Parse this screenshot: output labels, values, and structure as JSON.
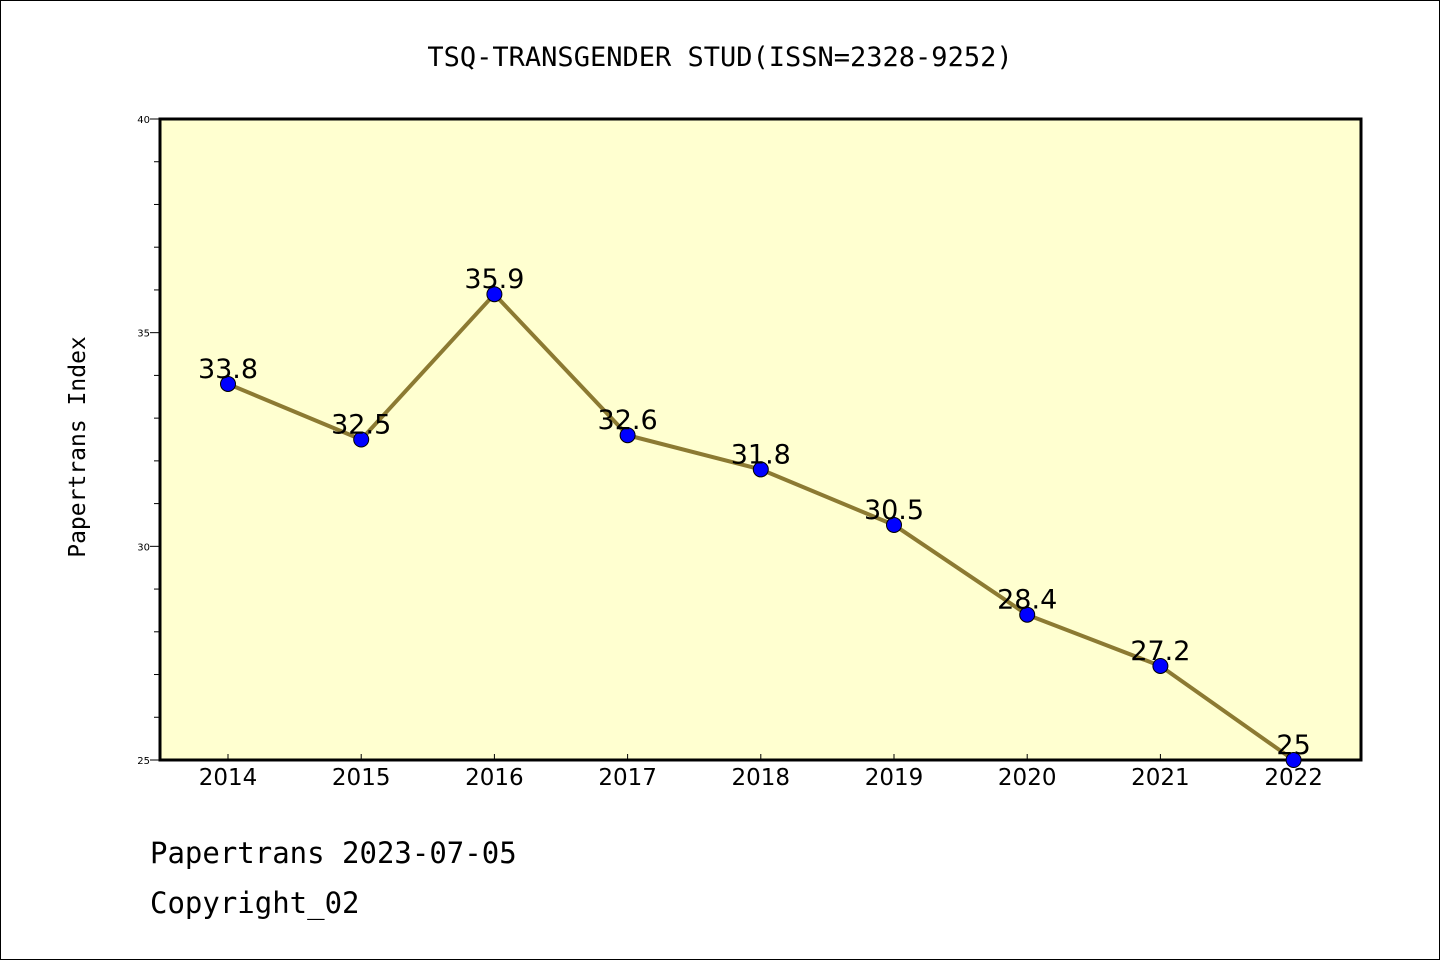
{
  "chart_data": {
    "type": "line",
    "title": "TSQ-TRANSGENDER STUD(ISSN=2328-9252)",
    "xlabel": "",
    "ylabel": "Papertrans Index",
    "categories": [
      "2014",
      "2015",
      "2016",
      "2017",
      "2018",
      "2019",
      "2020",
      "2021",
      "2022"
    ],
    "series": [
      {
        "values": [
          33.8,
          32.5,
          35.9,
          32.6,
          31.8,
          30.5,
          28.4,
          27.2,
          25
        ],
        "labels": [
          "33.8",
          "32.5",
          "35.9",
          "32.6",
          "31.8",
          "30.5",
          "28.4",
          "27.2",
          "25"
        ]
      }
    ],
    "ylim": [
      25,
      40
    ],
    "yticks": [
      "25",
      "30",
      "35",
      "40"
    ],
    "grid": false,
    "legend": "none",
    "colors": {
      "plot_background": "#ffffd0",
      "line": "#8c7a32",
      "marker": "#0000ff",
      "axis": "#000000"
    }
  },
  "footer": {
    "date_line": "Papertrans 2023-07-05",
    "copyright_line": "Copyright_02"
  }
}
